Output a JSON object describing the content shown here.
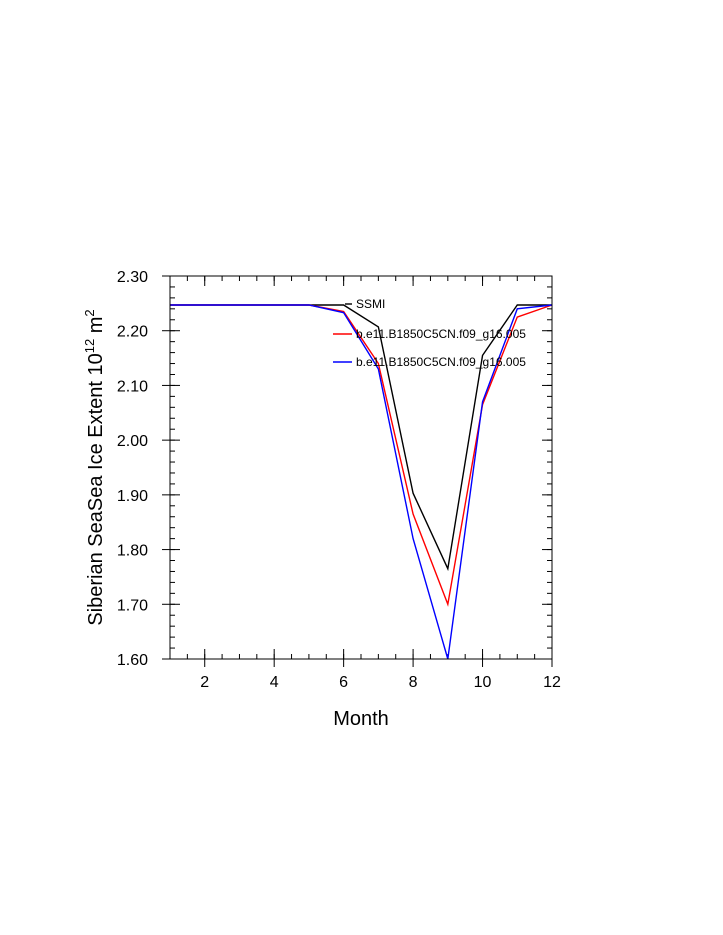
{
  "chart_data": {
    "type": "line",
    "xlabel": "Month",
    "ylabel": "Siberian SeaSea Ice Extent 10",
    "ylabel_sup": "12",
    "ylabel_unit": " m",
    "ylabel_unit_sup": "2",
    "xlim": [
      1,
      12
    ],
    "ylim": [
      1.6,
      2.3
    ],
    "xticks": [
      2,
      4,
      6,
      8,
      10,
      12
    ],
    "xtick_labels": [
      "2",
      "4",
      "6",
      "8",
      "10",
      "12"
    ],
    "yticks": [
      1.6,
      1.7,
      1.8,
      1.9,
      2.0,
      2.1,
      2.2,
      2.3
    ],
    "ytick_labels": [
      "1.60",
      "1.70",
      "1.80",
      "1.90",
      "2.00",
      "2.10",
      "2.20",
      "2.30"
    ],
    "grid": false,
    "legend_position": "top-right",
    "x": [
      1,
      2,
      3,
      4,
      5,
      6,
      7,
      8,
      9,
      10,
      11,
      12
    ],
    "series": [
      {
        "name": "SSMI",
        "color": "#000000",
        "values": [
          2.247,
          2.247,
          2.247,
          2.247,
          2.247,
          2.247,
          2.207,
          1.903,
          1.765,
          2.155,
          2.247,
          2.247
        ]
      },
      {
        "name": "b.e11.B1850C5CN.f09_g16.005",
        "color": "#ff0000",
        "values": [
          2.247,
          2.247,
          2.247,
          2.247,
          2.247,
          2.235,
          2.14,
          1.865,
          1.7,
          2.065,
          2.225,
          2.247
        ]
      },
      {
        "name": "b.e11.B1850C5CN.f09_g16.005",
        "color": "#0000ff",
        "values": [
          2.247,
          2.247,
          2.247,
          2.247,
          2.247,
          2.233,
          2.13,
          1.82,
          1.6,
          2.07,
          2.24,
          2.247
        ]
      }
    ]
  }
}
